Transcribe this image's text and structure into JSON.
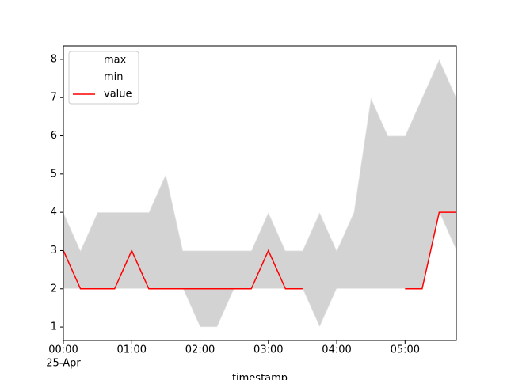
{
  "chart_data": {
    "type": "line",
    "x": [
      0,
      0.25,
      0.5,
      0.75,
      1,
      1.25,
      1.5,
      1.75,
      2,
      2.25,
      2.5,
      2.75,
      3,
      3.25,
      3.5,
      3.75,
      4,
      4.25,
      4.5,
      4.75,
      5,
      5.25,
      5.5,
      5.75
    ],
    "series": [
      {
        "name": "max",
        "color": "#ffffff",
        "values": [
          4,
          3,
          4,
          4,
          4,
          4,
          5,
          3,
          3,
          3,
          3,
          3,
          4,
          3,
          3,
          4,
          3,
          4,
          7,
          6,
          6,
          7,
          8,
          7
        ]
      },
      {
        "name": "min",
        "color": "#ffffff",
        "values": [
          2,
          2,
          2,
          2,
          2,
          2,
          2,
          2,
          1,
          1,
          2,
          2,
          2,
          2,
          2,
          1,
          2,
          2,
          2,
          2,
          2,
          2,
          4,
          3
        ]
      },
      {
        "name": "value",
        "color": "#ff0000",
        "values": [
          3,
          2,
          2,
          2,
          3,
          2,
          2,
          2,
          2,
          2,
          2,
          2,
          3,
          2,
          2,
          null,
          null,
          null,
          null,
          null,
          2,
          2,
          4,
          4
        ]
      }
    ],
    "fill_color": "#d3d3d3",
    "xlabel": "timestamp",
    "x_date_label": "25-Apr",
    "xlim": [
      0,
      5.75
    ],
    "xticks": [
      {
        "value": 0,
        "label": "00:00"
      },
      {
        "value": 1,
        "label": "01:00"
      },
      {
        "value": 2,
        "label": "02:00"
      },
      {
        "value": 3,
        "label": "03:00"
      },
      {
        "value": 4,
        "label": "04:00"
      },
      {
        "value": 5,
        "label": "05:00"
      }
    ],
    "ylim": [
      0.65,
      8.35
    ],
    "yticks": [
      1,
      2,
      3,
      4,
      5,
      6,
      7,
      8
    ],
    "legend": "upper left"
  }
}
